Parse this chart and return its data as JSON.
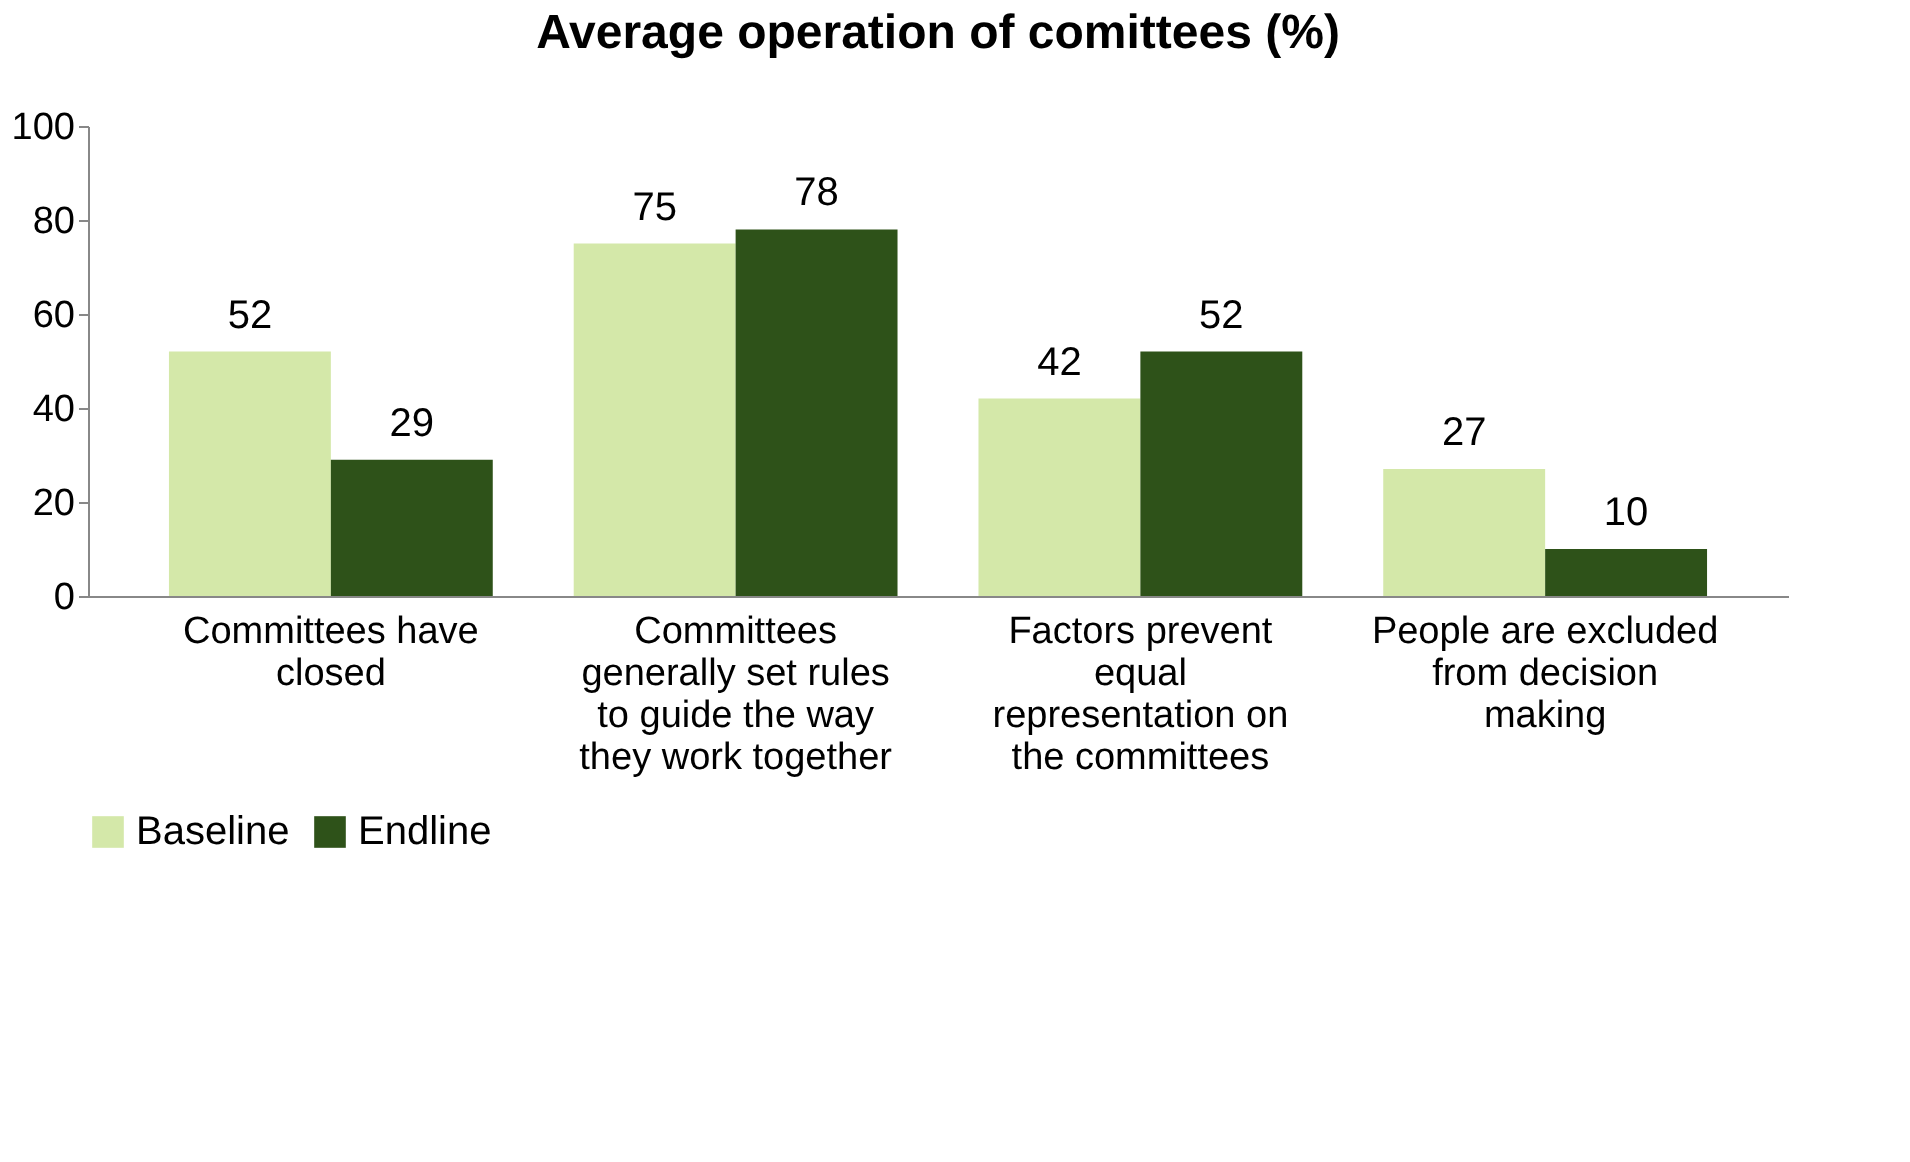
{
  "chart_data": {
    "type": "bar",
    "title": "Average operation of comittees (%)",
    "categories": [
      "Committees have closed",
      "Committees generally set rules to guide the way they work together",
      "Factors prevent equal representation on the committees",
      "People are excluded from decision making"
    ],
    "series": [
      {
        "name": "Baseline",
        "color": "#d4e8a9",
        "values": [
          52,
          75,
          42,
          27
        ]
      },
      {
        "name": "Endline",
        "color": "#2e5219",
        "values": [
          29,
          78,
          52,
          10
        ]
      }
    ],
    "ylim": [
      0,
      100
    ],
    "yticks": [
      0,
      20,
      40,
      60,
      80,
      100
    ],
    "grid": false,
    "legend": "bottom",
    "data_labels": true
  }
}
